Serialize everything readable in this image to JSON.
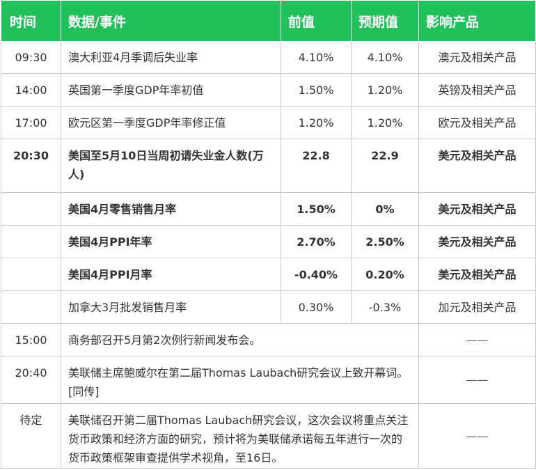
{
  "headers": {
    "time": "时间",
    "event": "数据/事件",
    "previous": "前值",
    "forecast": "预期值",
    "impact": "影响产品"
  },
  "rows": [
    {
      "time": "09:30",
      "event": "澳大利亚4月季调后失业率",
      "previous": "4.10%",
      "forecast": "4.10%",
      "impact": "澳元及相关产品"
    },
    {
      "time": "14:00",
      "event": "英国第一季度GDP年率初值",
      "previous": "1.50%",
      "forecast": "1.20%",
      "impact": "英镑及相关产品"
    },
    {
      "time": "17:00",
      "event": "欧元区第一季度GDP年率修正值",
      "previous": "1.20%",
      "forecast": "1.20%",
      "impact": "欧元及相关产品"
    },
    {
      "time": "20:30",
      "event": "美国至5月10日当周初请失业金人数(万人)",
      "previous": "22.8",
      "forecast": "22.9",
      "impact": "美元及相关产品"
    },
    {
      "time": "",
      "event": "美国4月零售销售月率",
      "previous": "1.50%",
      "forecast": "0%",
      "impact": "美元及相关产品"
    },
    {
      "time": "",
      "event": "美国4月PPI年率",
      "previous": "2.70%",
      "forecast": "2.50%",
      "impact": "美元及相关产品"
    },
    {
      "time": "",
      "event": "美国4月PPI月率",
      "previous": "-0.40%",
      "forecast": "0.20%",
      "impact": "美元及相关产品"
    },
    {
      "time": "",
      "event": "加拿大3月批发销售月率",
      "previous": "0.30%",
      "forecast": "-0.3%",
      "impact": "加元及相关产品"
    }
  ],
  "events": [
    {
      "time": "15:00",
      "event": "商务部召开5月第2次例行新闻发布会。",
      "impact": "——"
    },
    {
      "time": "20:40",
      "event": "美联储主席鲍威尔在第二届Thomas Laubach研究会议上致开幕词。[同传]",
      "impact": "——"
    },
    {
      "time": "待定",
      "event": "美联储召开第二届Thomas Laubach研究会议，这次会议将重点关注货币政策和经济方面的研究，预计将为美联储承诺每五年进行一次的货币政策框架审查提供学术视角，至16日。",
      "impact": "——"
    }
  ],
  "colors": {
    "header_bg": "#21c05a",
    "header_text": "#ffffff",
    "border": "#c8c8c8",
    "text": "#333333"
  }
}
